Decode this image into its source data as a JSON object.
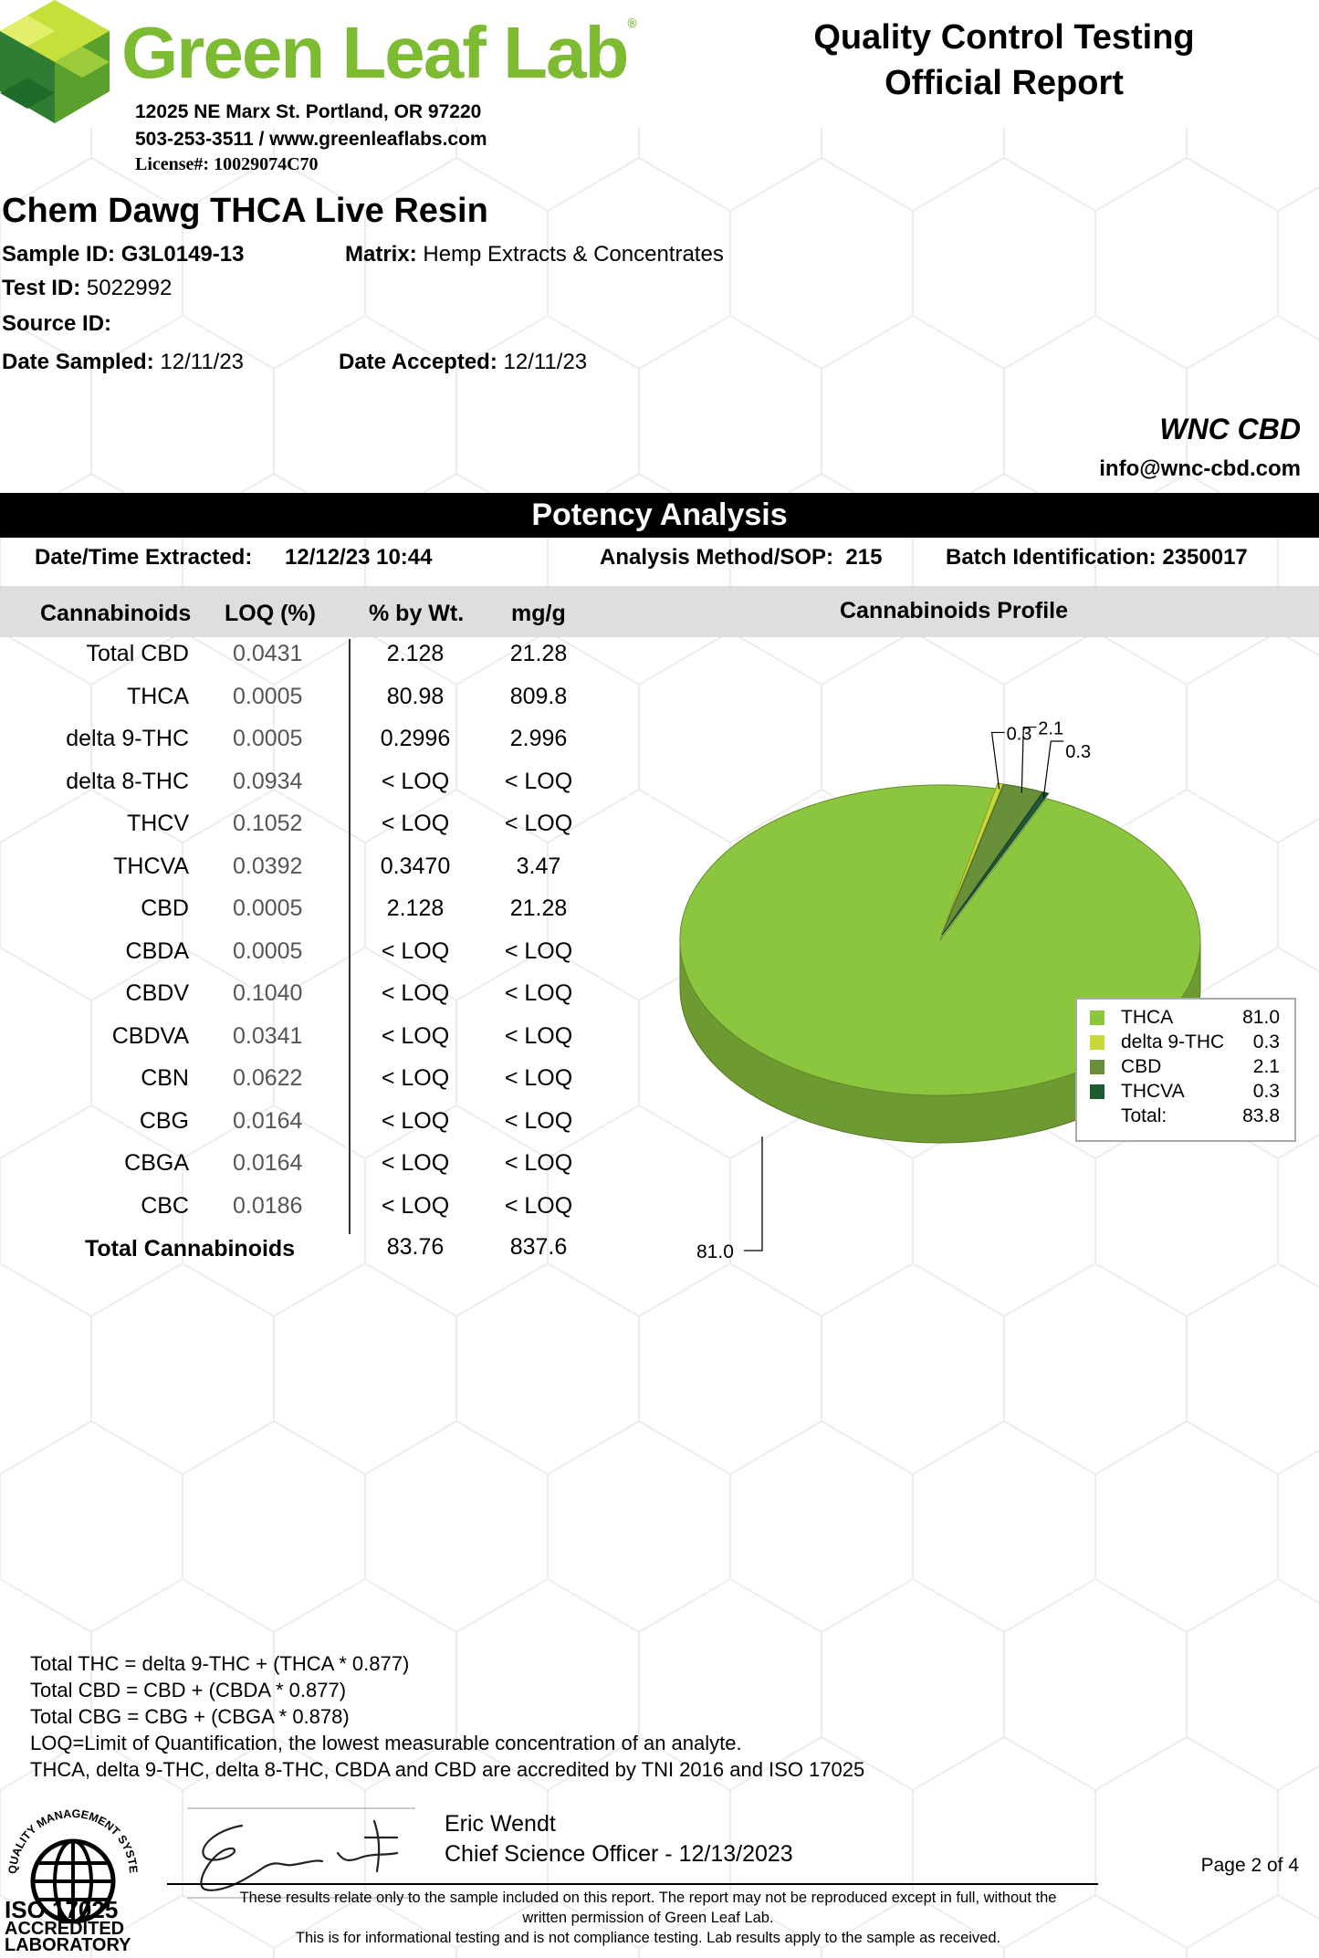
{
  "lab": {
    "name": "Green Leaf Lab",
    "address": "12025 NE Marx St. Portland, OR 97220",
    "contact": "503-253-3511 / www.greenleaflabs.com",
    "license": "License#: 10029074C70"
  },
  "report": {
    "title_line1": "Quality Control Testing",
    "title_line2": "Official Report"
  },
  "sample": {
    "product_name": "Chem Dawg THCA Live Resin",
    "sample_id_label": "Sample ID:",
    "sample_id": "G3L0149-13",
    "matrix_label": "Matrix:",
    "matrix": "Hemp Extracts & Concentrates",
    "test_id_label": "Test ID:",
    "test_id": "5022992",
    "source_id_label": "Source ID:",
    "date_sampled_label": "Date Sampled:",
    "date_sampled": "12/11/23",
    "date_accepted_label": "Date Accepted:",
    "date_accepted": "12/11/23"
  },
  "client": {
    "name": "WNC CBD",
    "email": "info@wnc-cbd.com"
  },
  "potency": {
    "section_title": "Potency Analysis",
    "extracted_label": "Date/Time Extracted:",
    "extracted_value": "12/12/23  10:44",
    "method_label": "Analysis Method/SOP:",
    "method_value": "215",
    "batch_label": "Batch Identification:",
    "batch_value": "2350017",
    "columns": [
      "Cannabinoids",
      "LOQ (%)",
      "% by Wt.",
      "mg/g"
    ],
    "profile_title": "Cannabinoids Profile",
    "rows": [
      {
        "name": "Total CBD",
        "loq": "0.0431",
        "pct": "2.128",
        "mg": "21.28"
      },
      {
        "name": "THCA",
        "loq": "0.0005",
        "pct": "80.98",
        "mg": "809.8"
      },
      {
        "name": "delta 9-THC",
        "loq": "0.0005",
        "pct": "0.2996",
        "mg": "2.996"
      },
      {
        "name": "delta 8-THC",
        "loq": "0.0934",
        "pct": "< LOQ",
        "mg": "< LOQ"
      },
      {
        "name": "THCV",
        "loq": "0.1052",
        "pct": "< LOQ",
        "mg": "< LOQ"
      },
      {
        "name": "THCVA",
        "loq": "0.0392",
        "pct": "0.3470",
        "mg": "3.47"
      },
      {
        "name": "CBD",
        "loq": "0.0005",
        "pct": "2.128",
        "mg": "21.28"
      },
      {
        "name": "CBDA",
        "loq": "0.0005",
        "pct": "< LOQ",
        "mg": "< LOQ"
      },
      {
        "name": "CBDV",
        "loq": "0.1040",
        "pct": "< LOQ",
        "mg": "< LOQ"
      },
      {
        "name": "CBDVA",
        "loq": "0.0341",
        "pct": "< LOQ",
        "mg": "< LOQ"
      },
      {
        "name": "CBN",
        "loq": "0.0622",
        "pct": "< LOQ",
        "mg": "< LOQ"
      },
      {
        "name": "CBG",
        "loq": "0.0164",
        "pct": "< LOQ",
        "mg": "< LOQ"
      },
      {
        "name": "CBGA",
        "loq": "0.0164",
        "pct": "< LOQ",
        "mg": "< LOQ"
      },
      {
        "name": "CBC",
        "loq": "0.0186",
        "pct": "< LOQ",
        "mg": "< LOQ"
      }
    ],
    "total_label": "Total Cannabinoids",
    "total_pct": "83.76",
    "total_mg": "837.6"
  },
  "chart_data": {
    "type": "pie",
    "title": "Cannabinoids Profile",
    "categories": [
      "THCA",
      "delta 9-THC",
      "CBD",
      "THCVA"
    ],
    "values": [
      81.0,
      0.3,
      2.1,
      0.3
    ],
    "value_labels": [
      "81.0",
      "0.3",
      "2.1",
      "0.3"
    ],
    "colors": [
      "#8cc63f",
      "#c6d938",
      "#6a8f3a",
      "#1e5b32"
    ],
    "legend_placement": "right",
    "legend_total_label": "Total:",
    "legend_total": "83.8"
  },
  "notes": [
    "Total THC =  delta 9-THC + (THCA * 0.877)",
    "Total CBD =  CBD + (CBDA * 0.877)",
    "Total CBG = CBG + (CBGA * 0.878)",
    "LOQ=Limit of Quantification, the lowest measurable concentration of an analyte.",
    "THCA, delta 9-THC, delta 8-THC, CBDA and CBD are accredited by TNI 2016 and ISO 17025"
  ],
  "signoff": {
    "name": "Eric Wendt",
    "title": "Chief Science Officer - 12/13/2023"
  },
  "accreditation": {
    "ring_text": "QUALITY MANAGEMENT SYSTEM",
    "line1": "ISO 17025",
    "line2": "ACCREDITED",
    "line3": "LABORATORY"
  },
  "page_number": "Page 2 of 4",
  "disclaimer_line1": "These results relate only to the sample included on this report. The report may not be reproduced except in full, without the",
  "disclaimer_line2": "written permission of Green Leaf Lab.",
  "disclaimer_line3": "This is for informational testing and is not compliance testing. Lab results apply to the sample as received."
}
